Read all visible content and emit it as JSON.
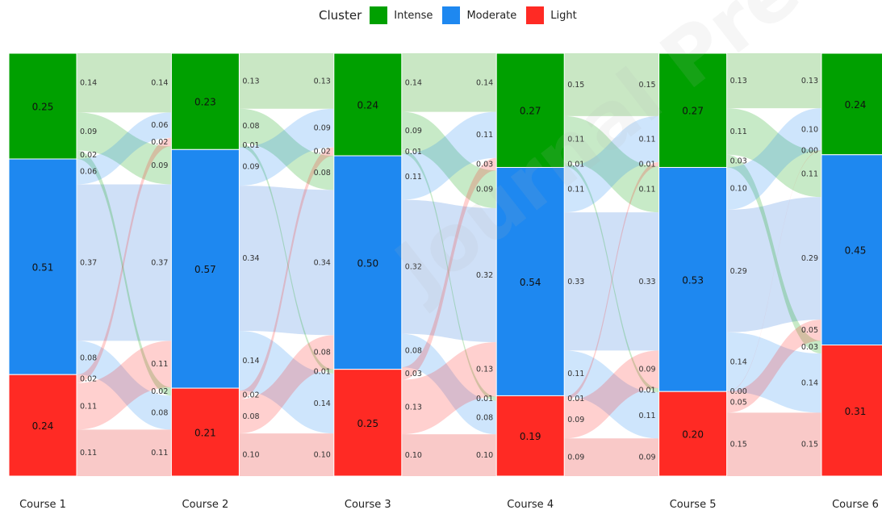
{
  "legend": {
    "title": "Cluster",
    "items": [
      {
        "name": "Intense",
        "color": "#00a000"
      },
      {
        "name": "Moderate",
        "color": "#1e88f0"
      },
      {
        "name": "Light",
        "color": "#ff2a24"
      }
    ]
  },
  "watermark": "Journal Pre-proof",
  "chart_data": {
    "type": "alluvial",
    "clusters": [
      "Intense",
      "Moderate",
      "Light"
    ],
    "colors": {
      "Intense": "#00a000",
      "Moderate": "#1e88f0",
      "Light": "#ff2a24"
    },
    "stages": [
      "Course 1",
      "Course 2",
      "Course 3",
      "Course 4",
      "Course 5",
      "Course 6"
    ],
    "proportions": [
      {
        "Intense": 0.25,
        "Moderate": 0.51,
        "Light": 0.24
      },
      {
        "Intense": 0.23,
        "Moderate": 0.57,
        "Light": 0.21
      },
      {
        "Intense": 0.24,
        "Moderate": 0.5,
        "Light": 0.25
      },
      {
        "Intense": 0.27,
        "Moderate": 0.54,
        "Light": 0.19
      },
      {
        "Intense": 0.27,
        "Moderate": 0.53,
        "Light": 0.2
      },
      {
        "Intense": 0.24,
        "Moderate": 0.45,
        "Light": 0.31
      }
    ],
    "transitions": [
      [
        [
          0.14,
          0.09,
          0.02
        ],
        [
          0.06,
          0.37,
          0.08
        ],
        [
          0.02,
          0.11,
          0.11
        ]
      ],
      [
        [
          0.13,
          0.08,
          0.01
        ],
        [
          0.09,
          0.34,
          0.14
        ],
        [
          0.02,
          0.08,
          0.1
        ]
      ],
      [
        [
          0.14,
          0.09,
          0.01
        ],
        [
          0.11,
          0.32,
          0.08
        ],
        [
          0.03,
          0.13,
          0.1
        ]
      ],
      [
        [
          0.15,
          0.11,
          0.01
        ],
        [
          0.11,
          0.33,
          0.11
        ],
        [
          0.01,
          0.09,
          0.09
        ]
      ],
      [
        [
          0.13,
          0.11,
          0.03
        ],
        [
          0.1,
          0.29,
          0.14
        ],
        [
          0.0,
          0.05,
          0.15
        ]
      ]
    ],
    "source_labels": [
      [
        "0.14",
        "0.09",
        "0.02",
        "0.06",
        "0.37",
        "0.08",
        "0.02",
        "0.11",
        "0.11"
      ],
      [
        "0.13",
        "0.08",
        "0.01",
        "0.09",
        "0.34",
        "0.14",
        "0.02",
        "0.08",
        "0.10"
      ],
      [
        "0.14",
        "0.09",
        "0.01",
        "0.11",
        "0.32",
        "0.08",
        "0.03",
        "0.13",
        "0.10"
      ],
      [
        "0.15",
        "0.11",
        "0.01",
        "0.11",
        "0.33",
        "0.11",
        "0.01",
        "0.09",
        "0.09"
      ],
      [
        "0.13",
        "0.11",
        "0.03",
        "0.10",
        "0.29",
        "0.14",
        "0.00",
        "0.05",
        "0.15"
      ]
    ],
    "target_labels": [
      [
        "0.14",
        "0.06",
        "0.02",
        "0.09",
        "0.37",
        "0.11",
        "0.02",
        "0.08",
        "0.11"
      ],
      [
        "0.13",
        "0.09",
        "0.02",
        "0.08",
        "0.34",
        "0.08",
        "0.01",
        "0.14",
        "0.10"
      ],
      [
        "0.14",
        "0.11",
        "0.03",
        "0.09",
        "0.32",
        "0.13",
        "0.01",
        "0.08",
        "0.10"
      ],
      [
        "0.15",
        "0.11",
        "0.01",
        "0.11",
        "0.33",
        "0.09",
        "0.01",
        "0.11",
        "0.09"
      ],
      [
        "0.13",
        "0.10",
        "0.00",
        "0.11",
        "0.29",
        "0.05",
        "0.03",
        "0.14",
        "0.15"
      ]
    ]
  }
}
